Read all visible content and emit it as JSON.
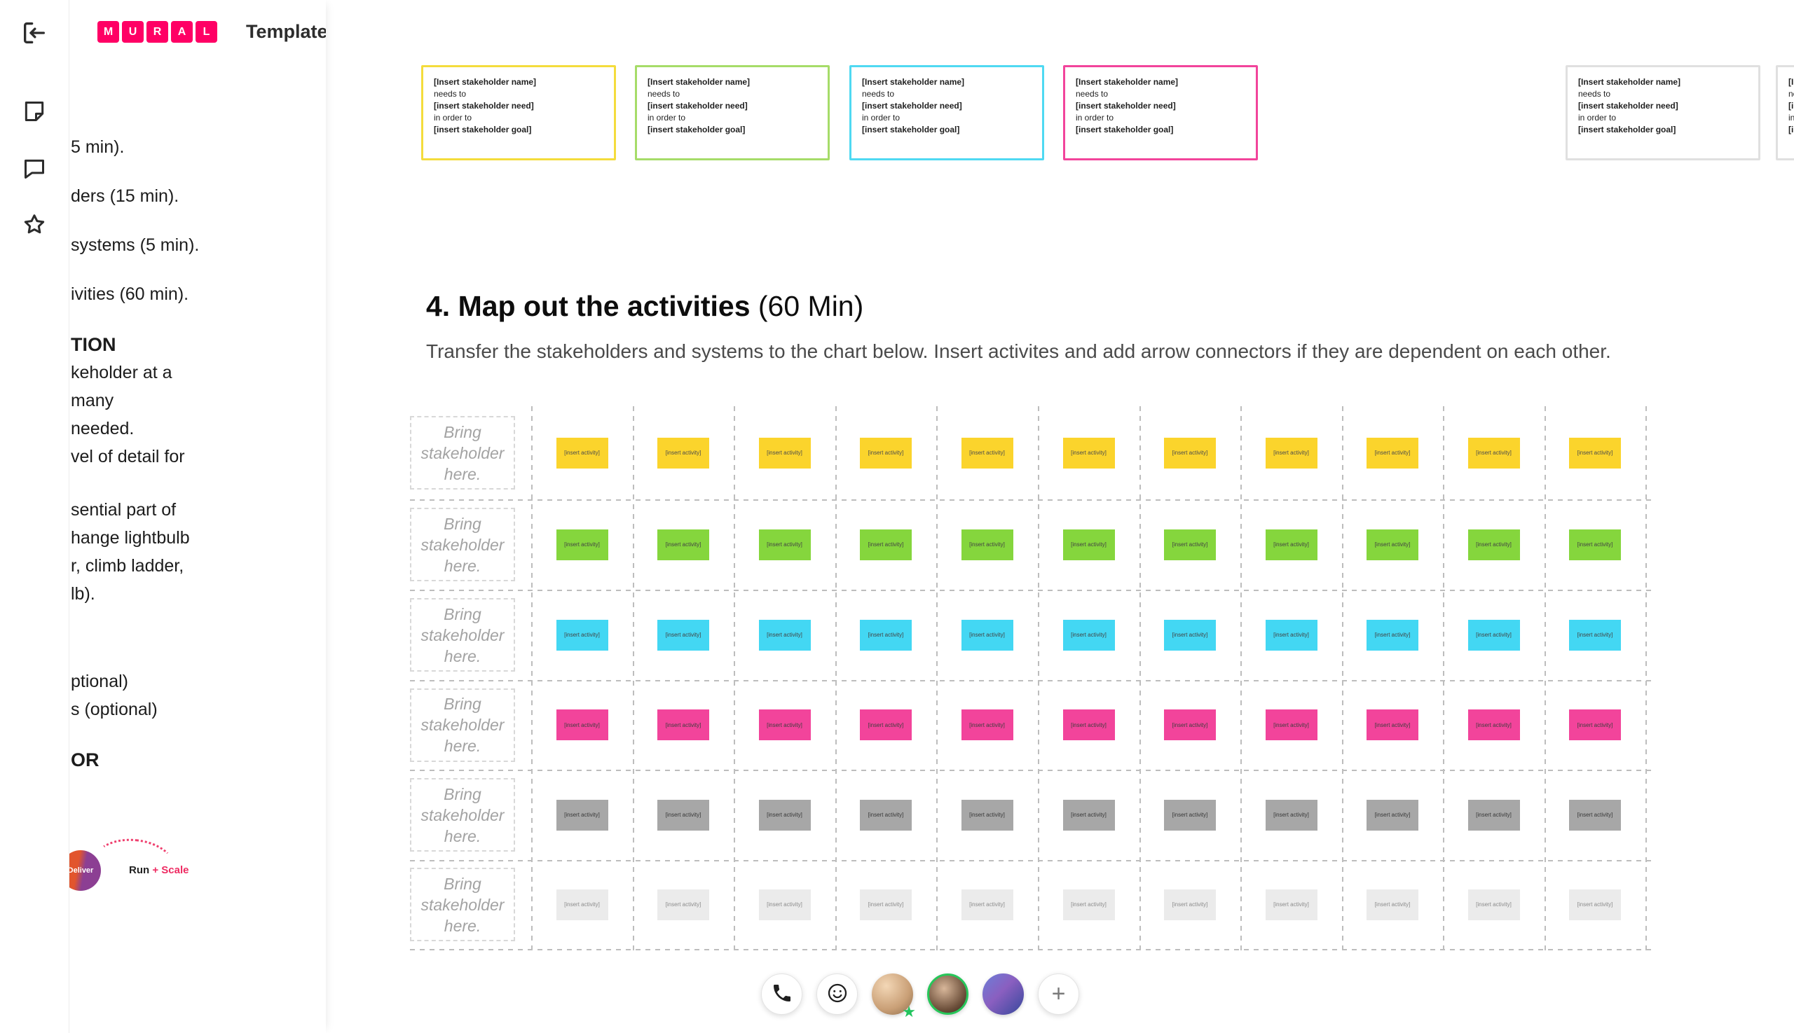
{
  "app": {
    "title_badge": "Template",
    "logo_letters": [
      "M",
      "U",
      "R",
      "A",
      "L"
    ],
    "brand_color": "#FF0065"
  },
  "rail": {
    "icons": [
      "exit-icon",
      "sticky-note-icon",
      "comments-icon",
      "star-icon"
    ]
  },
  "outline_panel": {
    "paragraphs": [
      {
        "style": "item",
        "lines": [
          "5 min)."
        ]
      },
      {
        "style": "item",
        "lines": [
          "ders (15 min)."
        ]
      },
      {
        "style": "item",
        "lines": [
          "systems (5 min)."
        ]
      },
      {
        "style": "item",
        "lines": [
          "ivities (60 min)."
        ]
      },
      {
        "style": "heading",
        "lines": [
          "TION"
        ]
      },
      {
        "style": "para",
        "lines": [
          "keholder at a",
          "many",
          "needed.",
          "vel of detail for"
        ]
      },
      {
        "style": "para",
        "lines": [
          "sential part of",
          "hange lightbulb",
          "r, climb ladder,",
          "lb)."
        ]
      },
      {
        "style": "para",
        "extra_gap": true,
        "lines": [
          "ptional)",
          "s (optional)"
        ]
      },
      {
        "style": "heading",
        "lines": [
          "OR"
        ]
      }
    ],
    "logo": {
      "deliver": "Deliver",
      "run": "Run",
      "plus": "+",
      "scale": "Scale"
    }
  },
  "canvas": {
    "stakeholder_card": {
      "lines": [
        {
          "text": "[Insert stakeholder name]",
          "bold": true
        },
        {
          "text": "needs to",
          "bold": false
        },
        {
          "text": "[insert stakeholder need]",
          "bold": true
        },
        {
          "text": "in order to",
          "bold": false
        },
        {
          "text": "[insert stakeholder goal]",
          "bold": true
        }
      ]
    },
    "stakeholder_cards": [
      {
        "border": "#F4DC3C"
      },
      {
        "border": "#A6DC69"
      },
      {
        "border": "#4FD9F2"
      },
      {
        "border": "#F2449B"
      },
      {
        "border": "#E0E0E0"
      },
      {
        "border": "#E0E0E0"
      }
    ],
    "section": {
      "heading_bold": "4. Map out the activities",
      "heading_regular": " (60 Min)",
      "subtitle": "Transfer the stakeholders and systems to the chart below. Insert activites and add arrow connectors if they are dependent on each other."
    },
    "grid": {
      "row_label": "Bring stakeholder here.",
      "sticky_label": "[insert activity]",
      "columns": 11,
      "rows": [
        {
          "color": "#FBD42C",
          "text_color": "#4c4c4c"
        },
        {
          "color": "#85D63D",
          "text_color": "#434343"
        },
        {
          "color": "#43D7F3",
          "text_color": "#434343"
        },
        {
          "color": "#F2449B",
          "text_color": "#3d3d3d"
        },
        {
          "color": "#A7A7A7",
          "text_color": "#383838"
        },
        {
          "color": "#EBEBEB",
          "text_color": "#8c8c8c"
        }
      ]
    }
  },
  "toolbar": {
    "icons": [
      "phone-icon",
      "smiley-icon",
      "plus-icon",
      "star-badge-icon"
    ],
    "avatars": [
      {
        "name": "participant-avatar-1",
        "badge": "green-star"
      },
      {
        "name": "participant-avatar-2",
        "ring": "#27c65a"
      },
      {
        "name": "participant-avatar-3"
      }
    ],
    "add_label": "+"
  }
}
